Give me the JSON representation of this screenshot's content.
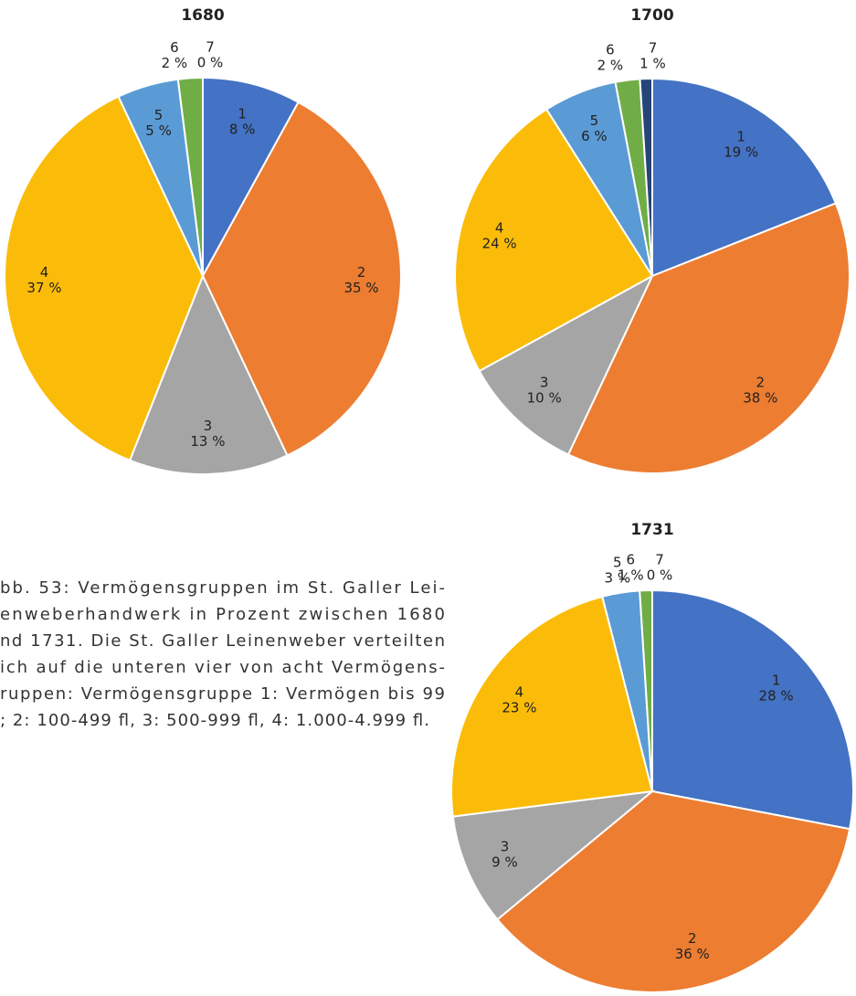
{
  "caption": [
    "bb. 53: Vermögensgruppen im St. Galler Lei-",
    "enweberhandwerk in Prozent zwischen 1680",
    "nd 1731. Die St. Galler Leinenweber verteilten",
    "ich auf die unteren vier von acht Vermögens-",
    "ruppen: Vermögensgruppe 1: Vermögen bis 99",
    "; 2: 100-499 fl, 3: 500-999 fl, 4: 1.000-4.999 fl."
  ],
  "chart_data": [
    {
      "type": "pie",
      "title": "1680",
      "categories": [
        "1",
        "2",
        "3",
        "4",
        "5",
        "6",
        "7"
      ],
      "values": [
        8,
        35,
        13,
        37,
        5,
        2,
        0
      ],
      "value_labels": [
        "8 %",
        "35 %",
        "13 %",
        "37 %",
        "5 %",
        "2 %",
        "0 %"
      ],
      "colors": [
        "#4472c4",
        "#ed7d31",
        "#a5a5a5",
        "#fbbc09",
        "#5b9bd5",
        "#70ad47",
        "#264478"
      ]
    },
    {
      "type": "pie",
      "title": "1700",
      "categories": [
        "1",
        "2",
        "3",
        "4",
        "5",
        "6",
        "7"
      ],
      "values": [
        19,
        38,
        10,
        24,
        6,
        2,
        1
      ],
      "value_labels": [
        "19 %",
        "38 %",
        "10 %",
        "24 %",
        "6 %",
        "2 %",
        "1 %"
      ],
      "colors": [
        "#4472c4",
        "#ed7d31",
        "#a5a5a5",
        "#fbbc09",
        "#5b9bd5",
        "#70ad47",
        "#264478"
      ]
    },
    {
      "type": "pie",
      "title": "1731",
      "categories": [
        "1",
        "2",
        "3",
        "4",
        "5",
        "6",
        "7"
      ],
      "values": [
        28,
        36,
        9,
        23,
        3,
        1,
        0
      ],
      "value_labels": [
        "28 %",
        "36 %",
        "9 %",
        "23 %",
        "3 %",
        "1 %",
        "0 %"
      ],
      "colors": [
        "#4472c4",
        "#ed7d31",
        "#a5a5a5",
        "#fbbc09",
        "#5b9bd5",
        "#70ad47",
        "#264478"
      ]
    }
  ]
}
